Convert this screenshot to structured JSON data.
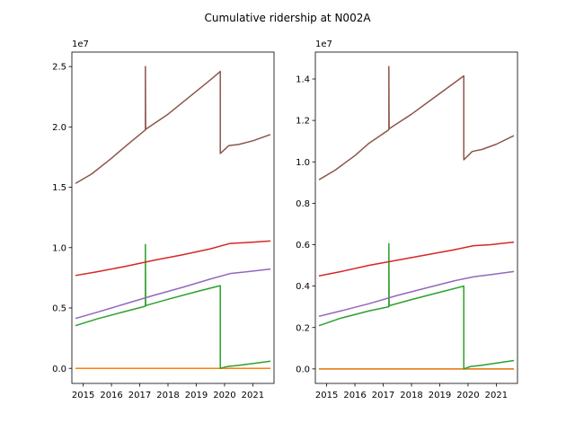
{
  "figure": {
    "title": "Cumulative ridership at N002A"
  },
  "chart_data": [
    {
      "type": "line",
      "title": "",
      "xlabel": "",
      "ylabel": "",
      "offset_text": "1e7",
      "xlim": [
        2014.6,
        2021.75
      ],
      "ylim": [
        -1.25,
        26.2
      ],
      "x_ticks": [
        2015,
        2016,
        2017,
        2018,
        2019,
        2020,
        2021
      ],
      "x_tick_labels": [
        "2015",
        "2016",
        "2017",
        "2018",
        "2019",
        "2020",
        "2021"
      ],
      "y_ticks": [
        0,
        5,
        10,
        15,
        20,
        25
      ],
      "y_tick_labels": [
        "0.0",
        "0.5",
        "1.0",
        "1.5",
        "2.0",
        "2.5"
      ],
      "grid": false,
      "series": [
        {
          "color": "#1f77b4",
          "points": [
            [
              2014.75,
              0.0
            ],
            [
              2021.6,
              0.0
            ]
          ]
        },
        {
          "color": "#ff7f0e",
          "points": [
            [
              2014.75,
              0.0
            ],
            [
              2021.6,
              0.0
            ]
          ]
        },
        {
          "color": "#2ca02c",
          "points": [
            [
              2014.75,
              3.55
            ],
            [
              2015.5,
              4.1
            ],
            [
              2016.5,
              4.72
            ],
            [
              2017.2,
              5.15
            ],
            [
              2017.2,
              10.25
            ],
            [
              2017.21,
              5.2
            ],
            [
              2018.0,
              5.72
            ],
            [
              2019.0,
              6.35
            ],
            [
              2019.85,
              6.85
            ],
            [
              2019.85,
              0.0
            ],
            [
              2020.1,
              0.15
            ],
            [
              2020.5,
              0.25
            ],
            [
              2021.0,
              0.4
            ],
            [
              2021.6,
              0.58
            ]
          ]
        },
        {
          "color": "#d62728",
          "points": [
            [
              2014.75,
              7.7
            ],
            [
              2015.5,
              8.0
            ],
            [
              2016.5,
              8.45
            ],
            [
              2017.5,
              8.95
            ],
            [
              2018.5,
              9.4
            ],
            [
              2019.5,
              9.9
            ],
            [
              2020.2,
              10.35
            ],
            [
              2020.8,
              10.42
            ],
            [
              2021.6,
              10.55
            ]
          ]
        },
        {
          "color": "#9467bd",
          "points": [
            [
              2014.75,
              4.15
            ],
            [
              2015.5,
              4.65
            ],
            [
              2016.5,
              5.35
            ],
            [
              2017.5,
              6.05
            ],
            [
              2018.5,
              6.7
            ],
            [
              2019.5,
              7.4
            ],
            [
              2020.2,
              7.85
            ],
            [
              2020.8,
              8.0
            ],
            [
              2021.6,
              8.22
            ]
          ]
        },
        {
          "color": "#8c564b",
          "points": [
            [
              2014.75,
              15.35
            ],
            [
              2015.3,
              16.1
            ],
            [
              2016.0,
              17.4
            ],
            [
              2016.5,
              18.4
            ],
            [
              2017.2,
              19.75
            ],
            [
              2017.2,
              25.0
            ],
            [
              2017.21,
              19.8
            ],
            [
              2018.0,
              21.05
            ],
            [
              2018.5,
              22.0
            ],
            [
              2019.0,
              22.95
            ],
            [
              2019.5,
              23.9
            ],
            [
              2019.85,
              24.6
            ],
            [
              2019.85,
              17.8
            ],
            [
              2020.15,
              18.45
            ],
            [
              2020.5,
              18.55
            ],
            [
              2021.0,
              18.85
            ],
            [
              2021.6,
              19.35
            ]
          ]
        }
      ]
    },
    {
      "type": "line",
      "title": "",
      "xlabel": "",
      "ylabel": "",
      "offset_text": "1e7",
      "xlim": [
        2014.6,
        2021.75
      ],
      "ylim": [
        -0.07,
        1.53
      ],
      "x_ticks": [
        2015,
        2016,
        2017,
        2018,
        2019,
        2020,
        2021
      ],
      "x_tick_labels": [
        "2015",
        "2016",
        "2017",
        "2018",
        "2019",
        "2020",
        "2021"
      ],
      "y_ticks": [
        0.0,
        0.2,
        0.4,
        0.6,
        0.8,
        1.0,
        1.2,
        1.4
      ],
      "y_tick_labels": [
        "0.0",
        "0.2",
        "0.4",
        "0.6",
        "0.8",
        "1.0",
        "1.2",
        "1.4"
      ],
      "grid": false,
      "series": [
        {
          "color": "#1f77b4",
          "points": [
            [
              2014.75,
              0.0
            ],
            [
              2021.6,
              0.0
            ]
          ]
        },
        {
          "color": "#ff7f0e",
          "points": [
            [
              2014.75,
              0.0
            ],
            [
              2021.6,
              0.0
            ]
          ]
        },
        {
          "color": "#2ca02c",
          "points": [
            [
              2014.75,
              0.21
            ],
            [
              2015.5,
              0.245
            ],
            [
              2016.5,
              0.28
            ],
            [
              2017.2,
              0.3
            ],
            [
              2017.2,
              0.605
            ],
            [
              2017.21,
              0.305
            ],
            [
              2018.0,
              0.335
            ],
            [
              2019.0,
              0.37
            ],
            [
              2019.85,
              0.4
            ],
            [
              2019.85,
              0.0
            ],
            [
              2020.1,
              0.012
            ],
            [
              2020.5,
              0.018
            ],
            [
              2021.0,
              0.028
            ],
            [
              2021.6,
              0.04
            ]
          ]
        },
        {
          "color": "#d62728",
          "points": [
            [
              2014.75,
              0.45
            ],
            [
              2015.5,
              0.47
            ],
            [
              2016.5,
              0.5
            ],
            [
              2017.5,
              0.525
            ],
            [
              2018.5,
              0.55
            ],
            [
              2019.5,
              0.575
            ],
            [
              2020.2,
              0.595
            ],
            [
              2020.8,
              0.6
            ],
            [
              2021.6,
              0.612
            ]
          ]
        },
        {
          "color": "#9467bd",
          "points": [
            [
              2014.75,
              0.255
            ],
            [
              2015.5,
              0.28
            ],
            [
              2016.5,
              0.315
            ],
            [
              2017.5,
              0.355
            ],
            [
              2018.5,
              0.39
            ],
            [
              2019.5,
              0.425
            ],
            [
              2020.2,
              0.445
            ],
            [
              2020.8,
              0.455
            ],
            [
              2021.6,
              0.47
            ]
          ]
        },
        {
          "color": "#8c564b",
          "points": [
            [
              2014.75,
              0.915
            ],
            [
              2015.3,
              0.96
            ],
            [
              2016.0,
              1.03
            ],
            [
              2016.5,
              1.09
            ],
            [
              2017.2,
              1.155
            ],
            [
              2017.2,
              1.46
            ],
            [
              2017.21,
              1.16
            ],
            [
              2018.0,
              1.23
            ],
            [
              2018.5,
              1.28
            ],
            [
              2019.0,
              1.33
            ],
            [
              2019.5,
              1.38
            ],
            [
              2019.85,
              1.415
            ],
            [
              2019.85,
              1.01
            ],
            [
              2020.15,
              1.05
            ],
            [
              2020.5,
              1.06
            ],
            [
              2021.0,
              1.085
            ],
            [
              2021.6,
              1.125
            ]
          ]
        }
      ]
    }
  ]
}
